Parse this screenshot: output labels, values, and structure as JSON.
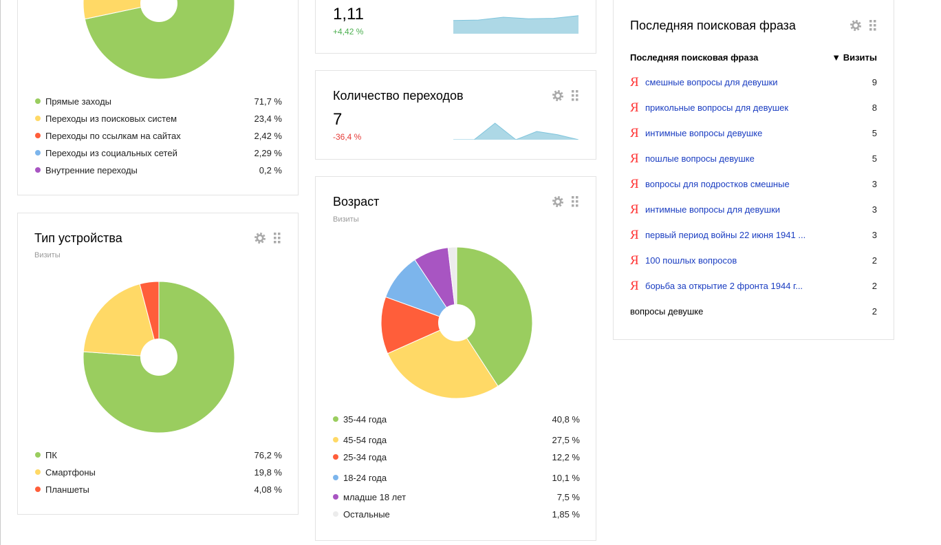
{
  "colors": {
    "green": "#9acd5f",
    "yellow": "#ffd966",
    "red": "#ff5e3a",
    "blue": "#7cb5ec",
    "purple": "#a855c2",
    "gray": "#ececec",
    "spark": "#add8e6"
  },
  "sources": {
    "legend": [
      {
        "label": "Прямые заходы",
        "value": "71,7 %",
        "color": "green"
      },
      {
        "label": "Переходы из поисковых систем",
        "value": "23,4 %",
        "color": "yellow"
      },
      {
        "label": "Переходы по ссылкам на сайтах",
        "value": "2,42 %",
        "color": "red"
      },
      {
        "label": "Переходы из социальных сетей",
        "value": "2,29 %",
        "color": "blue"
      },
      {
        "label": "Внутренние переходы",
        "value": "0,2 %",
        "color": "purple"
      }
    ]
  },
  "device": {
    "title": "Тип устройства",
    "subtitle": "Визиты",
    "legend": [
      {
        "label": "ПК",
        "value": "76,2 %",
        "color": "green"
      },
      {
        "label": "Смартфоны",
        "value": "19,8 %",
        "color": "yellow"
      },
      {
        "label": "Планшеты",
        "value": "4,08 %",
        "color": "red"
      }
    ]
  },
  "metric_top": {
    "value": "1,11",
    "delta": "+4,42 %",
    "spark": [
      0.6,
      0.62,
      0.75,
      0.68,
      0.7,
      0.82
    ]
  },
  "transitions": {
    "title": "Количество переходов",
    "value": "7",
    "delta": "-36,4 %",
    "spark": [
      0,
      0,
      1,
      0,
      0.5,
      0.3,
      0
    ]
  },
  "age": {
    "title": "Возраст",
    "subtitle": "Визиты",
    "legend": [
      {
        "label": "35-44 года",
        "value": "40,8 %",
        "color": "green"
      },
      {
        "label": "45-54 года",
        "value": "27,5 %",
        "color": "yellow"
      },
      {
        "label": "25-34 года",
        "value": "12,2 %",
        "color": "red"
      },
      {
        "label": "18-24 года",
        "value": "10,1 %",
        "color": "blue"
      },
      {
        "label": "младше 18 лет",
        "value": "7,5 %",
        "color": "purple"
      },
      {
        "label": "Остальные",
        "value": "1,85 %",
        "color": "gray"
      }
    ]
  },
  "search": {
    "title": "Последняя поисковая фраза",
    "col_phrase": "Последняя поисковая фраза",
    "col_visits": "▼ Визиты",
    "rows": [
      {
        "phrase": "смешные вопросы для девушки",
        "visits": "9",
        "yandex": true
      },
      {
        "phrase": "прикольные вопросы для девушек",
        "visits": "8",
        "yandex": true
      },
      {
        "phrase": "интимные вопросы девушке",
        "visits": "5",
        "yandex": true
      },
      {
        "phrase": "пошлые вопросы девушке",
        "visits": "5",
        "yandex": true
      },
      {
        "phrase": "вопросы для подростков смешные",
        "visits": "3",
        "yandex": true
      },
      {
        "phrase": "интимные вопросы для девушки",
        "visits": "3",
        "yandex": true
      },
      {
        "phrase": "первый период войны 22 июня 1941 ...",
        "visits": "3",
        "yandex": true
      },
      {
        "phrase": "100 пошлых вопросов",
        "visits": "2",
        "yandex": true
      },
      {
        "phrase": "борьба за открытие 2 фронта 1944 г...",
        "visits": "2",
        "yandex": true
      },
      {
        "phrase": "вопросы девушке",
        "visits": "2",
        "yandex": false
      }
    ]
  }
}
